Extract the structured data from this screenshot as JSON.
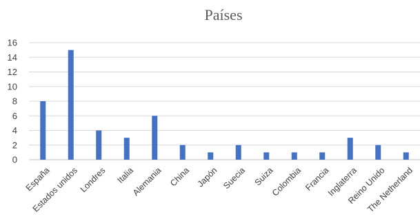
{
  "chart_data": {
    "type": "bar",
    "title": "Países",
    "categories": [
      "España",
      "Estados unidos",
      "Londres",
      "Italia",
      "Alemania",
      "China",
      "Japón",
      "Suecia",
      "Suiza",
      "Colombia",
      "Francia",
      "Inglaterra",
      "Reino Unido",
      "The Netherland"
    ],
    "values": [
      8,
      15,
      4,
      3,
      6,
      2,
      1,
      2,
      1,
      1,
      1,
      3,
      2,
      1
    ],
    "xlabel": "",
    "ylabel": "",
    "ylim": [
      0,
      16
    ],
    "yticks": [
      0,
      2,
      4,
      6,
      8,
      10,
      12,
      14,
      16
    ],
    "grid": true,
    "legend": "none",
    "bar_color": "#4472C4"
  }
}
